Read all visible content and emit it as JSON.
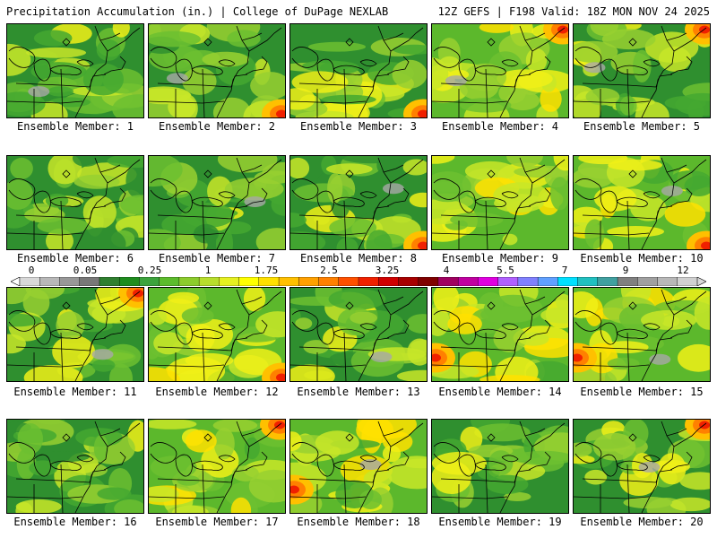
{
  "header": {
    "left": "Precipitation Accumulation (in.) | College of DuPage NEXLAB",
    "right": "12Z GEFS | F198 Valid: 18Z MON NOV 24 2025"
  },
  "panels": [
    {
      "label": "Ensemble Member: 1",
      "wet": 0.35,
      "seed": 11,
      "hot": "none"
    },
    {
      "label": "Ensemble Member: 2",
      "wet": 0.25,
      "seed": 23,
      "hot": "se"
    },
    {
      "label": "Ensemble Member: 3",
      "wet": 0.45,
      "seed": 37,
      "hot": "se"
    },
    {
      "label": "Ensemble Member: 4",
      "wet": 0.55,
      "seed": 41,
      "hot": "ne"
    },
    {
      "label": "Ensemble Member: 5",
      "wet": 0.4,
      "seed": 53,
      "hot": "ne"
    },
    {
      "label": "Ensemble Member: 6",
      "wet": 0.2,
      "seed": 61,
      "hot": "none"
    },
    {
      "label": "Ensemble Member: 7",
      "wet": 0.3,
      "seed": 71,
      "hot": "none"
    },
    {
      "label": "Ensemble Member: 8",
      "wet": 0.28,
      "seed": 83,
      "hot": "se"
    },
    {
      "label": "Ensemble Member: 9",
      "wet": 0.6,
      "seed": 97,
      "hot": "none"
    },
    {
      "label": "Ensemble Member: 10",
      "wet": 0.55,
      "seed": 101,
      "hot": "se"
    },
    {
      "label": "Ensemble Member: 11",
      "wet": 0.4,
      "seed": 113,
      "hot": "ne"
    },
    {
      "label": "Ensemble Member: 12",
      "wet": 0.5,
      "seed": 127,
      "hot": "se"
    },
    {
      "label": "Ensemble Member: 13",
      "wet": 0.38,
      "seed": 131,
      "hot": "none"
    },
    {
      "label": "Ensemble Member: 14",
      "wet": 0.55,
      "seed": 139,
      "hot": "w"
    },
    {
      "label": "Ensemble Member: 15",
      "wet": 0.7,
      "seed": 149,
      "hot": "w"
    },
    {
      "label": "Ensemble Member: 16",
      "wet": 0.3,
      "seed": 151,
      "hot": "none"
    },
    {
      "label": "Ensemble Member: 17",
      "wet": 0.55,
      "seed": 163,
      "hot": "ne"
    },
    {
      "label": "Ensemble Member: 18",
      "wet": 0.5,
      "seed": 173,
      "hot": "w"
    },
    {
      "label": "Ensemble Member: 19",
      "wet": 0.35,
      "seed": 181,
      "hot": "none"
    },
    {
      "label": "Ensemble Member: 20",
      "wet": 0.4,
      "seed": 191,
      "hot": "ne"
    }
  ],
  "colorbar": {
    "ticks": [
      "0",
      "0.05",
      "0.25",
      "1",
      "1.75",
      "2.5",
      "3.25",
      "4",
      "5.5",
      "7",
      "9",
      "12"
    ],
    "colors": [
      "#d8d8d8",
      "#b8b8b8",
      "#989898",
      "#787878",
      "#2f7f2f",
      "#1e8c1e",
      "#3ca33c",
      "#5cbc2c",
      "#8ccc2c",
      "#b8de2c",
      "#e6f020",
      "#ffff00",
      "#ffe000",
      "#ffc000",
      "#ffa000",
      "#ff8000",
      "#ff5000",
      "#f02000",
      "#d00000",
      "#a80000",
      "#800000",
      "#a00060",
      "#c000a0",
      "#e000e0",
      "#b060ff",
      "#8080ff",
      "#60a0ff",
      "#00e0ff",
      "#20c0c0",
      "#40a0a0",
      "#808080",
      "#a0a0a0",
      "#b8b8b8",
      "#d0d0d0"
    ]
  }
}
